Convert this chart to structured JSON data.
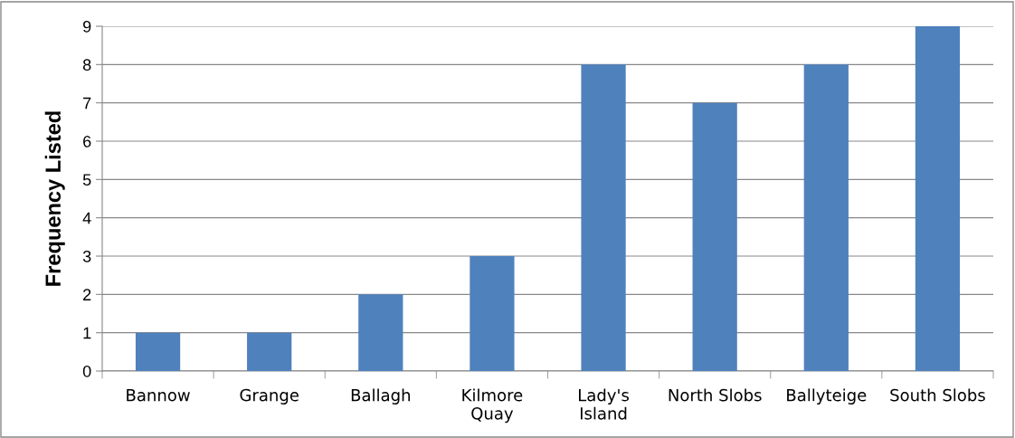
{
  "chart_data": {
    "type": "bar",
    "ylabel": "Frequency Listed",
    "categories": [
      "Bannow",
      "Grange",
      "Ballagh",
      "Kilmore\nQuay",
      "Lady's\nIsland",
      "North Slobs",
      "Ballyteige",
      "South Slobs"
    ],
    "values": [
      1,
      1,
      2,
      3,
      8,
      7,
      8,
      9
    ],
    "color": "#4f81bd",
    "ylim": [
      0,
      9
    ],
    "yticks": [
      0,
      1,
      2,
      3,
      4,
      5,
      6,
      7,
      8,
      9
    ],
    "grid": "y",
    "legend": false
  }
}
